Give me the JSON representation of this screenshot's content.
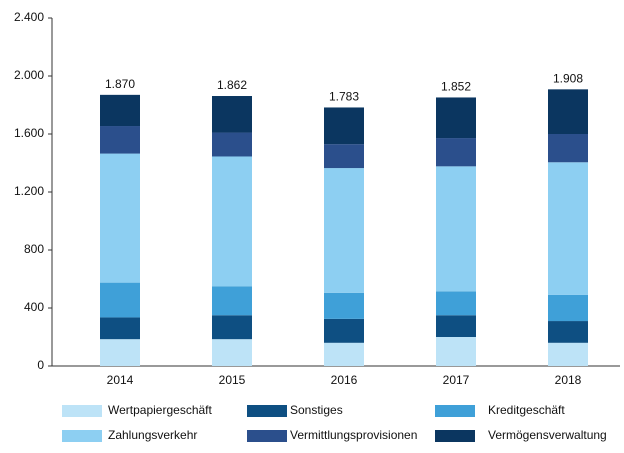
{
  "chart_data": {
    "type": "stacked_bar",
    "categories": [
      "2014",
      "2015",
      "2016",
      "2017",
      "2018"
    ],
    "series": [
      {
        "name": "Wertpapiergeschäft",
        "color": "#bde3f7",
        "values": [
          185,
          185,
          160,
          200,
          160
        ]
      },
      {
        "name": "Sonstiges",
        "color": "#0e4f82",
        "values": [
          150,
          165,
          165,
          150,
          150
        ]
      },
      {
        "name": "Kreditgeschäft",
        "color": "#3fa0d8",
        "values": [
          240,
          200,
          180,
          165,
          180
        ]
      },
      {
        "name": "Zahlungsverkehr",
        "color": "#8dcff2",
        "values": [
          890,
          895,
          860,
          862,
          915
        ]
      },
      {
        "name": "Vermittlungsprovisionen",
        "color": "#2b4f8c",
        "values": [
          190,
          165,
          165,
          195,
          195
        ]
      },
      {
        "name": "Vermögensverwaltung",
        "color": "#0b3660",
        "values": [
          215,
          252,
          253,
          280,
          308
        ]
      }
    ],
    "totals": {
      "values": [
        1870,
        1862,
        1783,
        1852,
        1908
      ],
      "value_labels": [
        "1.870",
        "1.862",
        "1.783",
        "1.852",
        "1.908"
      ]
    },
    "ylim": [
      0,
      2400
    ],
    "yticks": [
      0,
      {
        "value": 400,
        "label": "400"
      },
      {
        "value": 800,
        "label": "800"
      },
      {
        "value": 1200,
        "label": "1.200"
      },
      {
        "value": 1600,
        "label": "1.600"
      },
      {
        "value": 2000,
        "label": "2.000"
      },
      {
        "value": 2400,
        "label": "2.400"
      }
    ],
    "grid": false
  }
}
